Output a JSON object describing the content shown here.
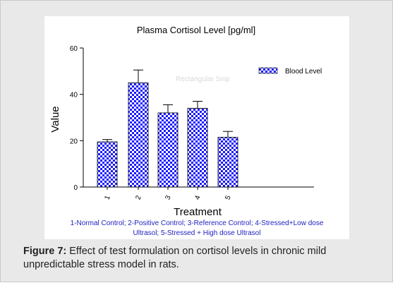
{
  "chart_data": {
    "type": "bar",
    "title": "Plasma Cortisol Level [pg/ml]",
    "xlabel": "Treatment",
    "ylabel": "Value",
    "categories": [
      "1",
      "2",
      "3",
      "4",
      "5"
    ],
    "series": [
      {
        "name": "Blood Level",
        "values": [
          19.5,
          45,
          32,
          34,
          21.5
        ],
        "errors": [
          1,
          5.5,
          3.5,
          3,
          2.5
        ]
      }
    ],
    "ylim": [
      0,
      60
    ],
    "yticks": [
      0,
      20,
      40,
      60
    ],
    "grid": false,
    "legend": "top-right",
    "watermark": "Rectangular Snip",
    "bar_fill": "blue-white checkerboard",
    "colors": {
      "bar": "#1a1aff",
      "bar_alt": "#ffffff",
      "axis": "#000000"
    }
  },
  "footnote": {
    "line1": "1-Normal Control; 2-Positive Control; 3-Reference Control; 4-Stressed+Low  dose",
    "line2": "Ultrasol; 5-Stressed + High dose Ultrasol"
  },
  "caption": {
    "label": "Figure 7:",
    "text": " Effect of test formulation on cortisol levels in chronic mild unpredictable stress model in rats."
  }
}
